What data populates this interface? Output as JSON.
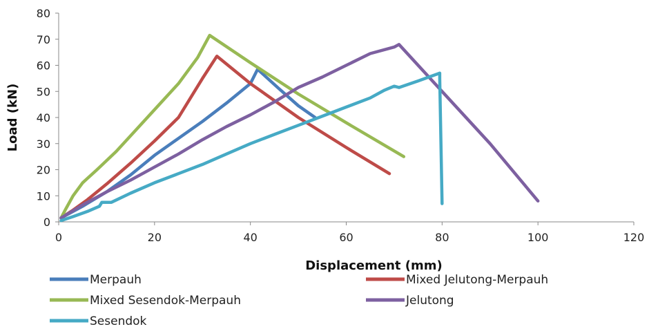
{
  "chart_data": {
    "type": "line",
    "title": "",
    "xlabel": "Displacement (mm)",
    "ylabel": "Load (kN)",
    "xlim": [
      0,
      120
    ],
    "ylim": [
      0,
      80
    ],
    "xticks": [
      0,
      20,
      40,
      60,
      80,
      100,
      120
    ],
    "yticks": [
      0,
      10,
      20,
      30,
      40,
      50,
      60,
      70,
      80
    ],
    "grid": false,
    "legend_position": "bottom",
    "series": [
      {
        "name": "Merpauh",
        "color": "#4A7EBB",
        "points": [
          [
            0.5,
            1.5
          ],
          [
            5,
            6
          ],
          [
            10,
            11.5
          ],
          [
            15,
            18
          ],
          [
            20,
            25.5
          ],
          [
            25,
            32
          ],
          [
            30,
            38.5
          ],
          [
            35,
            45.5
          ],
          [
            40,
            53
          ],
          [
            41.5,
            58.5
          ],
          [
            46,
            51
          ],
          [
            50,
            44.5
          ],
          [
            53.5,
            40
          ]
        ]
      },
      {
        "name": "Mixed Jelutong-Merpauh",
        "color": "#BE4B48",
        "points": [
          [
            0.5,
            1.5
          ],
          [
            3,
            4.5
          ],
          [
            6,
            8.5
          ],
          [
            10,
            14.5
          ],
          [
            15,
            22.5
          ],
          [
            20,
            31
          ],
          [
            25,
            40
          ],
          [
            30,
            55
          ],
          [
            33,
            63.5
          ],
          [
            40,
            53
          ],
          [
            50,
            40
          ],
          [
            60,
            28.5
          ],
          [
            69,
            18.5
          ]
        ]
      },
      {
        "name": "Mixed Sesendok-Merpauh",
        "color": "#98B954",
        "points": [
          [
            0.5,
            1.5
          ],
          [
            1.5,
            5
          ],
          [
            3,
            10
          ],
          [
            5,
            15
          ],
          [
            8,
            20
          ],
          [
            12,
            27
          ],
          [
            16,
            35
          ],
          [
            20,
            43
          ],
          [
            25,
            53
          ],
          [
            29,
            63
          ],
          [
            31.5,
            71.5
          ],
          [
            40,
            61
          ],
          [
            50,
            49
          ],
          [
            60,
            38
          ],
          [
            72,
            25
          ]
        ]
      },
      {
        "name": "Jelutong",
        "color": "#7D60A0",
        "points": [
          [
            0.5,
            1.5
          ],
          [
            5,
            6.5
          ],
          [
            10,
            11.5
          ],
          [
            15,
            16
          ],
          [
            20,
            21
          ],
          [
            25,
            26
          ],
          [
            30,
            31.5
          ],
          [
            35,
            36.5
          ],
          [
            40,
            41
          ],
          [
            45,
            46
          ],
          [
            50,
            51.5
          ],
          [
            55,
            55.5
          ],
          [
            60,
            60
          ],
          [
            65,
            64.5
          ],
          [
            70,
            67
          ],
          [
            71,
            68
          ],
          [
            80,
            50
          ],
          [
            90,
            30
          ],
          [
            100,
            8
          ]
        ]
      },
      {
        "name": "Sesendok",
        "color": "#46AAC5",
        "points": [
          [
            0.5,
            0.5
          ],
          [
            3,
            2
          ],
          [
            6,
            4
          ],
          [
            8.5,
            6
          ],
          [
            9,
            7.5
          ],
          [
            11,
            7.5
          ],
          [
            15,
            11
          ],
          [
            20,
            15
          ],
          [
            25,
            18.5
          ],
          [
            30,
            22
          ],
          [
            35,
            26
          ],
          [
            40,
            30
          ],
          [
            45,
            33.5
          ],
          [
            50,
            37
          ],
          [
            55,
            40.5
          ],
          [
            60,
            44
          ],
          [
            65,
            47.5
          ],
          [
            68,
            50.5
          ],
          [
            70,
            52
          ],
          [
            71,
            51.5
          ],
          [
            75,
            54
          ],
          [
            79.5,
            57
          ],
          [
            79.5,
            55
          ],
          [
            80,
            7
          ]
        ]
      }
    ]
  }
}
